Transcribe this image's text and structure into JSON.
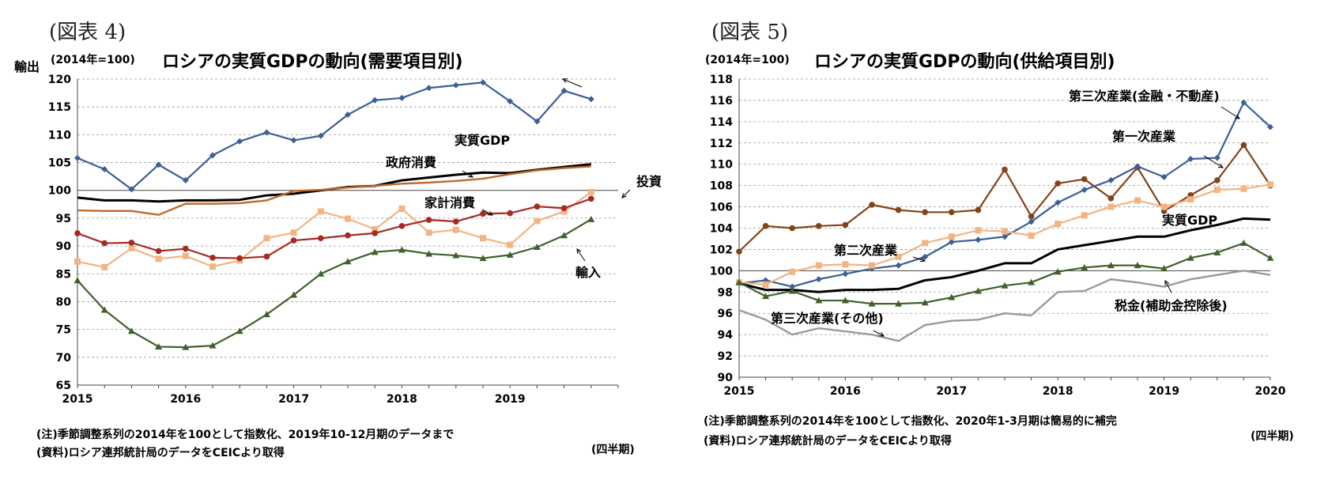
{
  "chart_data": [
    {
      "type": "line",
      "figure_label": "(図表 4)",
      "title": "ロシアの実質GDPの動向(需要項目別)",
      "unit_label": "(2014年=100)",
      "xlabel": "(四半期)",
      "ylim": [
        65,
        120
      ],
      "yticks": [
        "65",
        "70",
        "75",
        "80",
        "85",
        "90",
        "95",
        "100",
        "105",
        "110",
        "115",
        "120"
      ],
      "xtick_labels": [
        "2015",
        "2016",
        "2017",
        "2018",
        "2019"
      ],
      "x_quarters": 20,
      "notes": [
        "(注)季節調整系列の2014年を100として指数化、2019年10-12月期のデータまで",
        "(資料)ロシア連邦統計局のデータをCEICより取得"
      ],
      "series": [
        {
          "name": "輸出",
          "color": "#3c5f95",
          "marker": "diamond",
          "values": [
            105.8,
            103.8,
            100.2,
            104.6,
            101.8,
            106.3,
            108.8,
            110.4,
            109.0,
            109.8,
            113.6,
            116.2,
            116.6,
            118.4,
            118.9,
            119.4,
            116.0,
            112.4,
            117.9,
            116.4
          ]
        },
        {
          "name": "実質GDP",
          "color": "#000000",
          "marker": "none",
          "values": [
            98.7,
            98.2,
            98.2,
            98.0,
            98.2,
            98.2,
            98.3,
            99.1,
            99.4,
            100.0,
            100.6,
            100.8,
            101.8,
            102.3,
            102.8,
            103.2,
            103.1,
            103.7,
            104.2,
            104.7
          ]
        },
        {
          "name": "政府消費",
          "color": "#c06a2c",
          "marker": "none",
          "values": [
            96.4,
            96.3,
            96.3,
            95.6,
            97.6,
            97.6,
            97.7,
            98.2,
            99.9,
            100.1,
            100.5,
            100.8,
            101.2,
            101.4,
            101.7,
            102.1,
            102.9,
            103.6,
            104.0,
            104.3
          ]
        },
        {
          "name": "投資",
          "color": "#f2b483",
          "marker": "square",
          "values": [
            87.2,
            86.2,
            89.6,
            87.7,
            88.2,
            86.3,
            87.4,
            91.4,
            92.4,
            96.2,
            94.9,
            93.0,
            96.7,
            92.4,
            92.9,
            91.4,
            90.2,
            94.5,
            96.2,
            99.7
          ]
        },
        {
          "name": "家計消費",
          "color": "#a62a20",
          "marker": "circle",
          "values": [
            92.3,
            90.5,
            90.6,
            89.1,
            89.5,
            87.9,
            87.8,
            88.1,
            91.0,
            91.4,
            91.9,
            92.3,
            93.6,
            94.7,
            94.4,
            95.8,
            95.9,
            97.1,
            96.8,
            98.5
          ]
        },
        {
          "name": "輸入",
          "color": "#40602d",
          "marker": "triangle",
          "values": [
            83.8,
            78.5,
            74.7,
            71.9,
            71.8,
            72.1,
            74.7,
            77.7,
            81.2,
            85.0,
            87.2,
            88.9,
            89.3,
            88.6,
            88.3,
            87.8,
            88.4,
            89.8,
            91.9,
            94.8
          ]
        }
      ],
      "annotations": [
        "輸出",
        "実質GDP",
        "政府消費",
        "投資",
        "家計消費",
        "輸入"
      ]
    },
    {
      "type": "line",
      "figure_label": "(図表 5)",
      "title": "ロシアの実質GDPの動向(供給項目別)",
      "unit_label": "(2014年=100)",
      "xlabel": "(四半期)",
      "ylim": [
        90,
        118
      ],
      "yticks": [
        "90",
        "92",
        "94",
        "96",
        "98",
        "100",
        "102",
        "104",
        "106",
        "108",
        "110",
        "112",
        "114",
        "116",
        "118"
      ],
      "xtick_labels": [
        "2015",
        "2016",
        "2017",
        "2018",
        "2019",
        "2020"
      ],
      "x_quarters": 21,
      "notes": [
        "(注)季節調整系列の2014年を100として指数化、2020年1-3月期は簡易的に補完",
        "(資料)ロシア連邦統計局のデータをCEICより取得"
      ],
      "series": [
        {
          "name": "第一次産業",
          "color": "#86431a",
          "marker": "circle",
          "values": [
            101.8,
            104.2,
            104.0,
            104.2,
            104.3,
            106.2,
            105.7,
            105.5,
            105.5,
            105.7,
            109.5,
            105.1,
            108.2,
            108.6,
            106.8,
            109.7,
            105.6,
            107.1,
            108.5,
            111.8,
            108.0
          ]
        },
        {
          "name": "第三次産業(金融・不動産)",
          "color": "#3c5f95",
          "marker": "diamond",
          "values": [
            98.8,
            99.1,
            98.5,
            99.2,
            99.7,
            100.2,
            100.5,
            101.3,
            102.7,
            102.9,
            103.2,
            104.6,
            106.4,
            107.6,
            108.5,
            109.8,
            108.8,
            110.5,
            110.6,
            115.8,
            113.5
          ]
        },
        {
          "name": "第二次産業",
          "color": "#f2b483",
          "marker": "square",
          "values": [
            98.9,
            98.7,
            99.9,
            100.5,
            100.6,
            100.5,
            101.3,
            102.6,
            103.2,
            103.8,
            103.7,
            103.3,
            104.4,
            105.2,
            106.0,
            106.6,
            106.0,
            106.7,
            107.6,
            107.7,
            108.1
          ]
        },
        {
          "name": "実質GDP",
          "color": "#000000",
          "marker": "none",
          "values": [
            98.8,
            98.2,
            98.2,
            98.0,
            98.2,
            98.2,
            98.3,
            99.1,
            99.4,
            100.0,
            100.7,
            100.7,
            102.0,
            102.4,
            102.8,
            103.2,
            103.2,
            103.8,
            104.3,
            104.9,
            104.8
          ]
        },
        {
          "name": "第三次産業(その他)",
          "color": "#40602d",
          "marker": "triangle",
          "values": [
            98.9,
            97.6,
            98.1,
            97.2,
            97.2,
            96.9,
            96.9,
            97.0,
            97.5,
            98.1,
            98.6,
            98.9,
            99.9,
            100.3,
            100.5,
            100.5,
            100.2,
            101.2,
            101.7,
            102.6,
            101.2
          ]
        },
        {
          "name": "税金(補助金控除後)",
          "color": "#9a9a9a",
          "marker": "none",
          "values": [
            96.3,
            95.4,
            94.0,
            94.6,
            94.3,
            94.0,
            93.4,
            94.9,
            95.3,
            95.4,
            96.0,
            95.8,
            98.0,
            98.1,
            99.2,
            98.9,
            98.5,
            99.2,
            99.6,
            100.0,
            99.6
          ]
        }
      ],
      "annotations": [
        "第三次産業(金融・不動産)",
        "第一次産業",
        "実質GDP",
        "第二次産業",
        "税金(補助金控除後)",
        "第三次産業(その他)"
      ]
    }
  ]
}
